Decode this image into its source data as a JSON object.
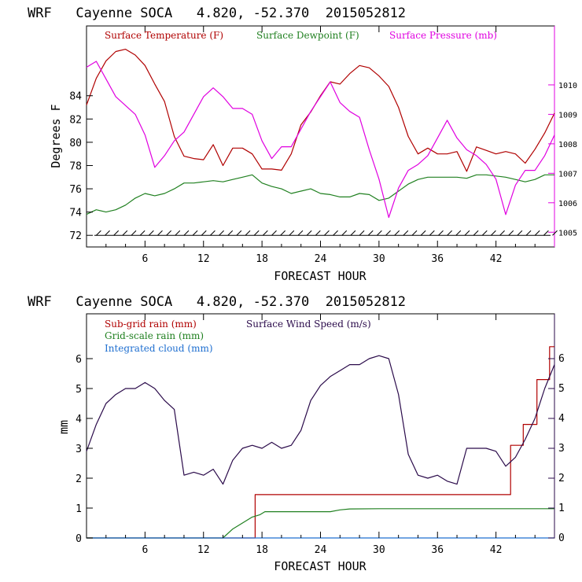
{
  "chart_data": [
    {
      "type": "line",
      "title": "WRF   Cayenne SOCA   4.820, -52.370  2015052812",
      "xlabel": "FORECAST HOUR",
      "ylabel": "Degrees F",
      "xlim": [
        0,
        48
      ],
      "ylim": [
        71,
        90
      ],
      "y2lim": [
        1004.5,
        1012
      ],
      "x_ticks": [
        6,
        12,
        18,
        24,
        30,
        36,
        42
      ],
      "y_ticks": [
        72,
        74,
        76,
        78,
        80,
        82,
        84
      ],
      "y2_ticks": [
        1005,
        1006,
        1007,
        1008,
        1009,
        1010
      ],
      "series": [
        {
          "name": "Surface Temperature (F)",
          "color": "#b00000",
          "axis": "left",
          "x": [
            0,
            1,
            2,
            3,
            4,
            5,
            6,
            7,
            8,
            9,
            10,
            11,
            12,
            13,
            14,
            15,
            16,
            17,
            18,
            19,
            20,
            21,
            22,
            23,
            24,
            25,
            26,
            27,
            28,
            29,
            30,
            31,
            32,
            33,
            34,
            35,
            36,
            37,
            38,
            39,
            40,
            41,
            42,
            43,
            44,
            45,
            46,
            47,
            48
          ],
          "y": [
            83.2,
            85.5,
            87.0,
            87.8,
            88.0,
            87.5,
            86.6,
            85.0,
            83.5,
            80.5,
            78.8,
            78.6,
            78.5,
            79.8,
            78.0,
            79.5,
            79.5,
            79.0,
            77.7,
            77.7,
            77.6,
            79.0,
            81.5,
            82.6,
            84.0,
            85.2,
            85.0,
            85.9,
            86.6,
            86.4,
            85.7,
            84.8,
            83.0,
            80.5,
            79.0,
            79.5,
            79.0,
            79.0,
            79.2,
            77.5,
            79.6,
            79.3,
            79.0,
            79.2,
            79.0,
            78.2,
            79.4,
            80.8,
            82.5
          ]
        },
        {
          "name": "Surface Dewpoint (F)",
          "color": "#208020",
          "axis": "left",
          "x": [
            0,
            1,
            2,
            3,
            4,
            5,
            6,
            7,
            8,
            9,
            10,
            11,
            12,
            13,
            14,
            15,
            16,
            17,
            18,
            19,
            20,
            21,
            22,
            23,
            24,
            25,
            26,
            27,
            28,
            29,
            30,
            31,
            32,
            33,
            34,
            35,
            36,
            37,
            38,
            39,
            40,
            41,
            42,
            43,
            44,
            45,
            46,
            47,
            48
          ],
          "y": [
            73.8,
            74.2,
            74.0,
            74.2,
            74.6,
            75.2,
            75.6,
            75.4,
            75.6,
            76.0,
            76.5,
            76.5,
            76.6,
            76.7,
            76.6,
            76.8,
            77.0,
            77.2,
            76.5,
            76.2,
            76.0,
            75.6,
            75.8,
            76.0,
            75.6,
            75.5,
            75.3,
            75.3,
            75.6,
            75.5,
            75.0,
            75.2,
            75.8,
            76.4,
            76.8,
            77.0,
            77.0,
            77.0,
            77.0,
            76.9,
            77.2,
            77.2,
            77.1,
            77.0,
            76.8,
            76.6,
            76.8,
            77.2,
            77.2
          ]
        },
        {
          "name": "Surface Pressure (mb)",
          "color": "#e000e0",
          "axis": "right",
          "x": [
            0,
            1,
            2,
            3,
            4,
            5,
            6,
            7,
            8,
            9,
            10,
            11,
            12,
            13,
            14,
            15,
            16,
            17,
            18,
            19,
            20,
            21,
            22,
            23,
            24,
            25,
            26,
            27,
            28,
            29,
            30,
            31,
            32,
            33,
            34,
            35,
            36,
            37,
            38,
            39,
            40,
            41,
            42,
            43,
            44,
            45,
            46,
            47,
            48
          ],
          "y": [
            1010.6,
            1010.8,
            1010.2,
            1009.6,
            1009.3,
            1009.0,
            1008.3,
            1007.2,
            1007.6,
            1008.1,
            1008.4,
            1009.0,
            1009.6,
            1009.9,
            1009.6,
            1009.2,
            1009.2,
            1009.0,
            1008.1,
            1007.5,
            1007.9,
            1007.9,
            1008.5,
            1009.1,
            1009.6,
            1010.1,
            1009.4,
            1009.1,
            1008.9,
            1007.8,
            1006.8,
            1005.5,
            1006.5,
            1007.1,
            1007.3,
            1007.6,
            1008.2,
            1008.8,
            1008.2,
            1007.8,
            1007.6,
            1007.3,
            1006.8,
            1005.6,
            1006.6,
            1007.1,
            1007.1,
            1007.6,
            1008.3
          ]
        },
        {
          "name": "Wind barbs",
          "color": "#000000",
          "axis": "left",
          "x": [
            0,
            48
          ],
          "y": [
            72,
            72
          ]
        }
      ]
    },
    {
      "type": "line",
      "title": "WRF   Cayenne SOCA   4.820, -52.370  2015052812",
      "xlabel": "FORECAST HOUR",
      "ylabel": "mm",
      "xlim": [
        0,
        48
      ],
      "ylim": [
        0,
        7.5
      ],
      "y2lim": [
        0,
        7.5
      ],
      "x_ticks": [
        6,
        12,
        18,
        24,
        30,
        36,
        42
      ],
      "y_ticks": [
        0,
        1,
        2,
        3,
        4,
        5,
        6
      ],
      "y2_ticks": [
        0,
        1,
        2,
        3,
        4,
        5,
        6
      ],
      "series": [
        {
          "name": "Sub-grid rain (mm)",
          "color": "#b00000",
          "axis": "left",
          "step": true,
          "x": [
            0,
            17.3,
            17.3,
            43.5,
            43.5,
            44.8,
            44.8,
            46.2,
            46.2,
            47.5,
            47.5,
            48
          ],
          "y": [
            0,
            0,
            1.45,
            1.45,
            3.1,
            3.1,
            3.8,
            3.8,
            5.3,
            5.3,
            6.4,
            6.4
          ]
        },
        {
          "name": "Grid-scale rain (mm)",
          "color": "#208020",
          "axis": "left",
          "x": [
            0,
            14,
            15,
            16,
            17,
            17.8,
            18.3,
            25,
            26,
            27,
            30,
            48
          ],
          "y": [
            0,
            0,
            0.3,
            0.5,
            0.7,
            0.78,
            0.88,
            0.88,
            0.94,
            0.97,
            0.98,
            0.98
          ]
        },
        {
          "name": "Integrated cloud (mm)",
          "color": "#1f6fd0",
          "axis": "left",
          "x": [
            0,
            48
          ],
          "y": [
            0,
            0
          ]
        },
        {
          "name": "Surface Wind Speed (m/s)",
          "color": "#2a0a4a",
          "axis": "right",
          "x": [
            0,
            1,
            2,
            3,
            4,
            5,
            6,
            7,
            8,
            9,
            10,
            11,
            12,
            13,
            14,
            15,
            16,
            17,
            18,
            19,
            20,
            21,
            22,
            23,
            24,
            25,
            26,
            27,
            28,
            29,
            30,
            31,
            32,
            33,
            34,
            35,
            36,
            37,
            38,
            39,
            40,
            41,
            42,
            43,
            44,
            45,
            46,
            47,
            48
          ],
          "y": [
            2.9,
            3.8,
            4.5,
            4.8,
            5.0,
            5.0,
            5.2,
            5.0,
            4.6,
            4.3,
            2.1,
            2.2,
            2.1,
            2.3,
            1.8,
            2.6,
            3.0,
            3.1,
            3.0,
            3.2,
            3.0,
            3.1,
            3.6,
            4.6,
            5.1,
            5.4,
            5.6,
            5.8,
            5.8,
            6.0,
            6.1,
            6.0,
            4.8,
            2.8,
            2.1,
            2.0,
            2.1,
            1.9,
            1.8,
            3.0,
            3.0,
            3.0,
            2.9,
            2.4,
            2.7,
            3.3,
            4.0,
            5.0,
            5.8
          ]
        }
      ]
    }
  ]
}
